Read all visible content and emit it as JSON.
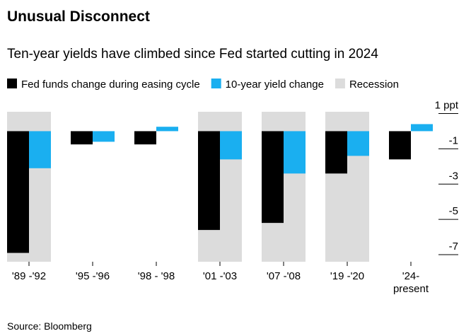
{
  "chart_data": {
    "type": "bar",
    "title": "Unusual Disconnect",
    "subtitle": "Ten-year yields have climbed since Fed started cutting in 2024",
    "categories": [
      "'89 -'92",
      "'95 -'96",
      "'98 - '98",
      "'01 -'03",
      "'07 -'08",
      "'19 -'20",
      "'24- present"
    ],
    "series": [
      {
        "name": "Fed funds change during easing cycle",
        "color": "#000000",
        "values": [
          -6.9,
          -0.75,
          -0.75,
          -5.6,
          -5.2,
          -2.4,
          -1.6
        ]
      },
      {
        "name": "10-year yield change",
        "color": "#1aaff0",
        "values": [
          -2.1,
          -0.6,
          0.25,
          -1.6,
          -2.4,
          -1.4,
          0.4
        ]
      }
    ],
    "recession": {
      "name": "Recession",
      "color": "#dcdcdc",
      "periods": [
        true,
        false,
        false,
        true,
        true,
        true,
        false
      ]
    },
    "ylim": [
      -7.4,
      1.1
    ],
    "yticks": [
      {
        "value": 1,
        "label": "1 ppt"
      },
      -1,
      -3,
      -5,
      -7
    ],
    "source": "Source: Bloomberg"
  }
}
